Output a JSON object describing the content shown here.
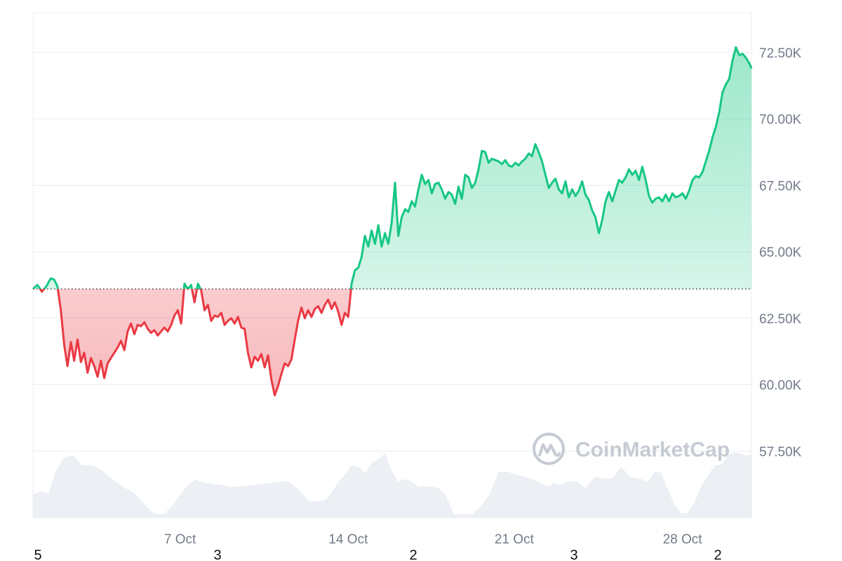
{
  "chart_data": {
    "type": "area",
    "baseline": 63600,
    "ylim": [
      55000,
      74000
    ],
    "xlim": [
      0,
      645
    ],
    "colors": {
      "up": "#16c784",
      "down": "#ea3943",
      "volume": "#eceff3",
      "grid": "#e8ecf1",
      "tick": "#737b8a"
    },
    "yticks": [
      {
        "value": 57500,
        "label": "57.50K"
      },
      {
        "value": 60000,
        "label": "60.00K"
      },
      {
        "value": 62500,
        "label": "62.50K"
      },
      {
        "value": 65000,
        "label": "65.00K"
      },
      {
        "value": 67500,
        "label": "67.50K"
      },
      {
        "value": 70000,
        "label": "70.00K"
      },
      {
        "value": 72500,
        "label": "72.50K"
      }
    ],
    "xticks": [
      {
        "value": 132,
        "label": "7 Oct"
      },
      {
        "value": 283,
        "label": "14 Oct"
      },
      {
        "value": 432,
        "label": "21 Oct"
      },
      {
        "value": 583,
        "label": "28 Oct"
      }
    ],
    "price": {
      "x": [
        0,
        4,
        8,
        12,
        16,
        19,
        22,
        25,
        28,
        31,
        34,
        37,
        40,
        43,
        46,
        49,
        52,
        55,
        58,
        61,
        64,
        67,
        70,
        73,
        76,
        79,
        82,
        85,
        88,
        91,
        94,
        97,
        100,
        103,
        106,
        109,
        112,
        115,
        118,
        121,
        124,
        127,
        130,
        133,
        136,
        139,
        142,
        145,
        148,
        151,
        154,
        157,
        160,
        163,
        166,
        169,
        172,
        175,
        178,
        181,
        184,
        187,
        190,
        193,
        196,
        199,
        202,
        205,
        208,
        211,
        214,
        217,
        220,
        223,
        226,
        229,
        232,
        235,
        238,
        241,
        244,
        247,
        250,
        253,
        256,
        259,
        262,
        265,
        268,
        271,
        274,
        277,
        280,
        283,
        286,
        289,
        292,
        295,
        298,
        301,
        304,
        307,
        310,
        313,
        316,
        319,
        322,
        325,
        328,
        331,
        334,
        337,
        340,
        343,
        346,
        349,
        352,
        355,
        358,
        361,
        364,
        367,
        370,
        373,
        376,
        379,
        382,
        385,
        388,
        391,
        394,
        397,
        400,
        403,
        406,
        409,
        412,
        415,
        418,
        421,
        424,
        427,
        430,
        433,
        436,
        439,
        442,
        445,
        448,
        451,
        454,
        457,
        460,
        463,
        466,
        469,
        472,
        475,
        478,
        481,
        484,
        487,
        490,
        493,
        496,
        499,
        502,
        505,
        508,
        511,
        514,
        517,
        520,
        523,
        526,
        529,
        532,
        535,
        538,
        541,
        544,
        547,
        550,
        553,
        556,
        559,
        562,
        565,
        568,
        571,
        574,
        577,
        580,
        583,
        586,
        589,
        592,
        595,
        598,
        601,
        604,
        607,
        610,
        613,
        616,
        619,
        622,
        625,
        628,
        631,
        634,
        637,
        640,
        643,
        645
      ],
      "y": [
        63600,
        63750,
        63500,
        63700,
        64000,
        63950,
        63700,
        62800,
        61500,
        60700,
        61600,
        60900,
        61700,
        60850,
        61200,
        60450,
        61000,
        60700,
        60300,
        60900,
        60250,
        60800,
        61000,
        61200,
        61400,
        61650,
        61300,
        62000,
        62300,
        61900,
        62250,
        62200,
        62350,
        62100,
        61950,
        62050,
        61850,
        62000,
        62150,
        62000,
        62250,
        62600,
        62800,
        62300,
        63800,
        63600,
        63750,
        63100,
        63800,
        63550,
        62800,
        63000,
        62400,
        62600,
        62550,
        62700,
        62250,
        62400,
        62500,
        62300,
        62550,
        62150,
        62100,
        61200,
        60650,
        61050,
        60900,
        61150,
        60650,
        61100,
        60200,
        59600,
        59950,
        60400,
        60800,
        60700,
        60950,
        61700,
        62400,
        62900,
        62500,
        62800,
        62550,
        62850,
        62950,
        62700,
        63000,
        63200,
        62850,
        63100,
        62750,
        62250,
        62700,
        62550,
        63800,
        64300,
        64400,
        64800,
        65600,
        65200,
        65800,
        65300,
        66000,
        65200,
        65700,
        65300,
        66100,
        67600,
        65600,
        66300,
        66600,
        66500,
        66900,
        66700,
        67350,
        67900,
        67550,
        67700,
        67200,
        67550,
        67600,
        67350,
        67000,
        67250,
        67150,
        66800,
        67450,
        67000,
        67900,
        67800,
        67400,
        67600,
        68100,
        68800,
        68750,
        68350,
        68500,
        68450,
        68400,
        68300,
        68450,
        68250,
        68200,
        68350,
        68250,
        68400,
        68500,
        68700,
        68600,
        69050,
        68750,
        68400,
        67900,
        67400,
        67600,
        67750,
        67350,
        67200,
        67650,
        67050,
        67350,
        67100,
        67300,
        67650,
        67150,
        66950,
        66550,
        66300,
        65700,
        66200,
        66900,
        67250,
        66900,
        67300,
        67700,
        67600,
        67800,
        68100,
        67900,
        68050,
        67700,
        68200,
        67700,
        67100,
        66850,
        67000,
        67050,
        66900,
        67150,
        66900,
        67200,
        67050,
        67100,
        67200,
        67000,
        67300,
        67700,
        67850,
        67800,
        68000,
        68400,
        68800,
        69300,
        69700,
        70250,
        71000,
        71300,
        71500,
        72200,
        72700,
        72400,
        72450,
        72300,
        72100,
        71900
      ],
      "up_x_clip": [
        283,
        645
      ]
    },
    "volume": {
      "x": [
        0,
        8,
        14,
        20,
        28,
        36,
        44,
        54,
        62,
        72,
        80,
        92,
        100,
        106,
        112,
        118,
        124,
        132,
        140,
        146,
        152,
        160,
        168,
        178,
        188,
        198,
        208,
        218,
        228,
        238,
        248,
        256,
        262,
        268,
        274,
        280,
        286,
        292,
        298,
        304,
        310,
        316,
        322,
        328,
        334,
        340,
        346,
        352,
        358,
        364,
        370,
        378,
        386,
        394,
        402,
        410,
        418,
        426,
        434,
        442,
        450,
        456,
        462,
        468,
        474,
        480,
        488,
        496,
        504,
        512,
        520,
        528,
        536,
        544,
        552,
        558,
        564,
        570,
        576,
        582,
        588,
        594,
        600,
        606,
        612,
        618,
        624,
        630,
        636,
        641,
        645
      ]
    }
  },
  "xaxis_bottom_labels": [
    "5",
    "3",
    "2",
    "3",
    "2"
  ],
  "watermark": {
    "text": "CoinMarketCap",
    "icon": "coinmarketcap-logo-icon"
  }
}
